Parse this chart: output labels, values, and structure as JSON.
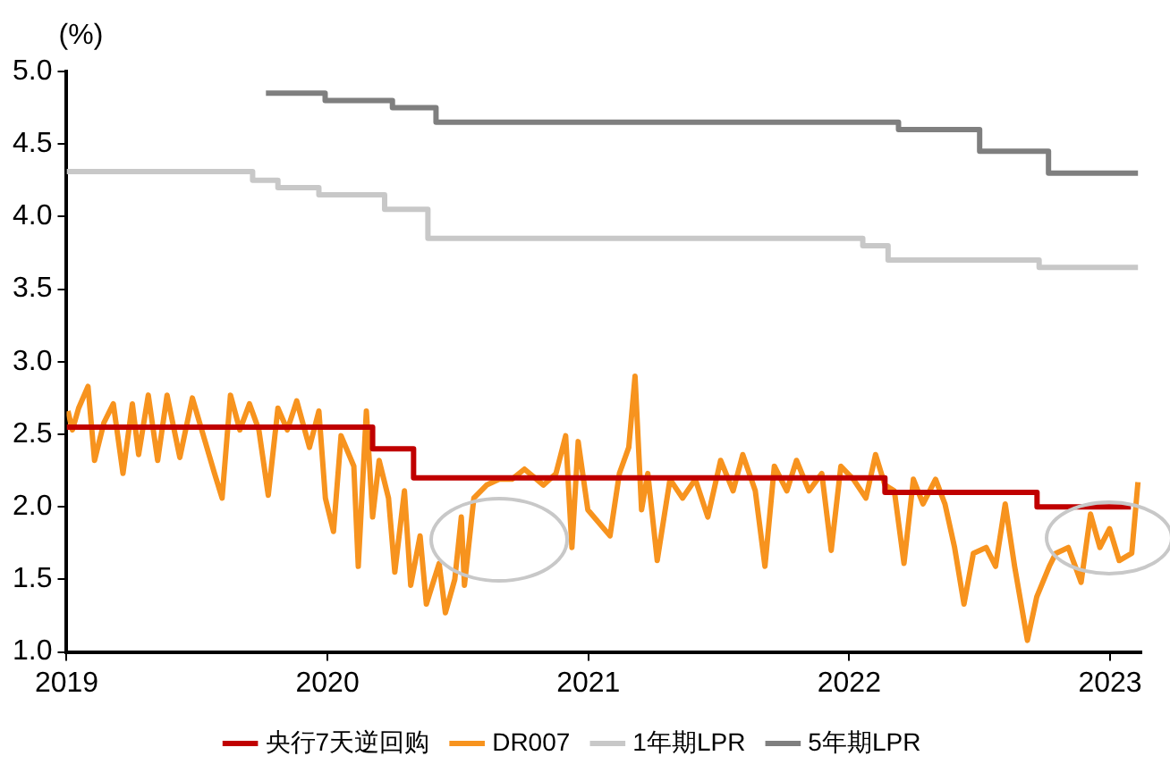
{
  "chart_data": {
    "type": "line",
    "ylabel": "(%)",
    "xlim": [
      2019,
      2023.12
    ],
    "xticks": [
      2019,
      2020,
      2021,
      2022,
      2023
    ],
    "ylim": [
      1.0,
      5.0
    ],
    "yticks": [
      {
        "value": 1,
        "label": "1.0"
      },
      {
        "value": 1.5,
        "label": "1.5"
      },
      {
        "value": 2,
        "label": "2.0"
      },
      {
        "value": 2.5,
        "label": "2.5"
      },
      {
        "value": 3,
        "label": "3.0"
      },
      {
        "value": 3.5,
        "label": "3.5"
      },
      {
        "value": 4,
        "label": "4.0"
      },
      {
        "value": 4.5,
        "label": "4.5"
      },
      {
        "value": 5,
        "label": "5.0"
      }
    ],
    "grid": false,
    "legend": "bottom",
    "marker": "none",
    "line_style": "solid",
    "series": [
      {
        "name": "央行7天逆回购",
        "type": "step",
        "color": "#c00000",
        "x": [
          2019.0,
          2020.173,
          2020.33,
          2022.137,
          2022.72,
          2023.08
        ],
        "values": [
          2.55,
          2.4,
          2.2,
          2.1,
          2.0,
          2.0
        ]
      },
      {
        "name": "DR007",
        "type": "line",
        "color": "#f7931e",
        "x": [
          2019.005,
          2019.022,
          2019.046,
          2019.082,
          2019.107,
          2019.143,
          2019.179,
          2019.216,
          2019.252,
          2019.276,
          2019.313,
          2019.349,
          2019.385,
          2019.434,
          2019.482,
          2019.531,
          2019.567,
          2019.596,
          2019.628,
          2019.664,
          2019.701,
          2019.737,
          2019.773,
          2019.81,
          2019.846,
          2019.882,
          2019.931,
          2019.967,
          2019.992,
          2020.023,
          2020.052,
          2020.101,
          2020.118,
          2020.149,
          2020.173,
          2020.198,
          2020.234,
          2020.258,
          2020.295,
          2020.319,
          2020.355,
          2020.379,
          2020.428,
          2020.452,
          2020.488,
          2020.513,
          2020.525,
          2020.561,
          2020.61,
          2020.658,
          2020.707,
          2020.755,
          2020.828,
          2020.876,
          2020.913,
          2020.937,
          2020.961,
          2020.998,
          2021.083,
          2021.119,
          2021.155,
          2021.179,
          2021.204,
          2021.228,
          2021.264,
          2021.313,
          2021.361,
          2021.41,
          2021.458,
          2021.507,
          2021.555,
          2021.592,
          2021.64,
          2021.677,
          2021.713,
          2021.761,
          2021.798,
          2021.846,
          2021.895,
          2021.931,
          2021.968,
          2022.016,
          2022.064,
          2022.101,
          2022.137,
          2022.173,
          2022.21,
          2022.246,
          2022.283,
          2022.331,
          2022.367,
          2022.404,
          2022.44,
          2022.476,
          2022.525,
          2022.561,
          2022.598,
          2022.634,
          2022.683,
          2022.719,
          2022.767,
          2022.792,
          2022.84,
          2022.889,
          2022.925,
          2022.961,
          2022.998,
          2023.035,
          2023.083,
          2023.107
        ],
        "values": [
          2.66,
          2.53,
          2.68,
          2.83,
          2.32,
          2.58,
          2.71,
          2.23,
          2.71,
          2.36,
          2.77,
          2.32,
          2.77,
          2.34,
          2.75,
          2.45,
          2.23,
          2.06,
          2.77,
          2.53,
          2.71,
          2.53,
          2.08,
          2.68,
          2.53,
          2.73,
          2.41,
          2.66,
          2.06,
          1.83,
          2.49,
          2.28,
          1.59,
          2.66,
          1.93,
          2.32,
          2.06,
          1.55,
          2.11,
          1.46,
          1.8,
          1.33,
          1.61,
          1.27,
          1.5,
          1.93,
          1.46,
          2.06,
          2.15,
          2.19,
          2.19,
          2.26,
          2.15,
          2.23,
          2.49,
          1.72,
          2.45,
          1.98,
          1.8,
          2.23,
          2.41,
          2.9,
          1.98,
          2.23,
          1.63,
          2.19,
          2.06,
          2.19,
          1.93,
          2.32,
          2.11,
          2.36,
          2.11,
          1.59,
          2.28,
          2.11,
          2.32,
          2.11,
          2.23,
          1.7,
          2.28,
          2.19,
          2.06,
          2.36,
          2.15,
          2.11,
          1.61,
          2.19,
          2.02,
          2.19,
          2.02,
          1.72,
          1.33,
          1.68,
          1.72,
          1.59,
          2.02,
          1.59,
          1.08,
          1.38,
          1.59,
          1.68,
          1.72,
          1.48,
          1.95,
          1.72,
          1.85,
          1.63,
          1.68,
          2.17
        ]
      },
      {
        "name": "1年期LPR",
        "type": "step",
        "color": "#c8c8c8",
        "x": [
          2019.0,
          2019.713,
          2019.81,
          2019.967,
          2020.219,
          2020.385,
          2022.052,
          2022.149,
          2022.728,
          2023.107
        ],
        "values": [
          4.31,
          4.25,
          4.2,
          4.15,
          4.05,
          3.85,
          3.8,
          3.7,
          3.65,
          3.65
        ]
      },
      {
        "name": "5年期LPR",
        "type": "step",
        "color": "#7f7f7f",
        "x": [
          2019.764,
          2019.991,
          2020.249,
          2020.416,
          2022.189,
          2022.5,
          2022.764,
          2023.107
        ],
        "values": [
          4.85,
          4.8,
          4.75,
          4.65,
          4.6,
          4.45,
          4.3,
          4.3
        ]
      }
    ]
  }
}
